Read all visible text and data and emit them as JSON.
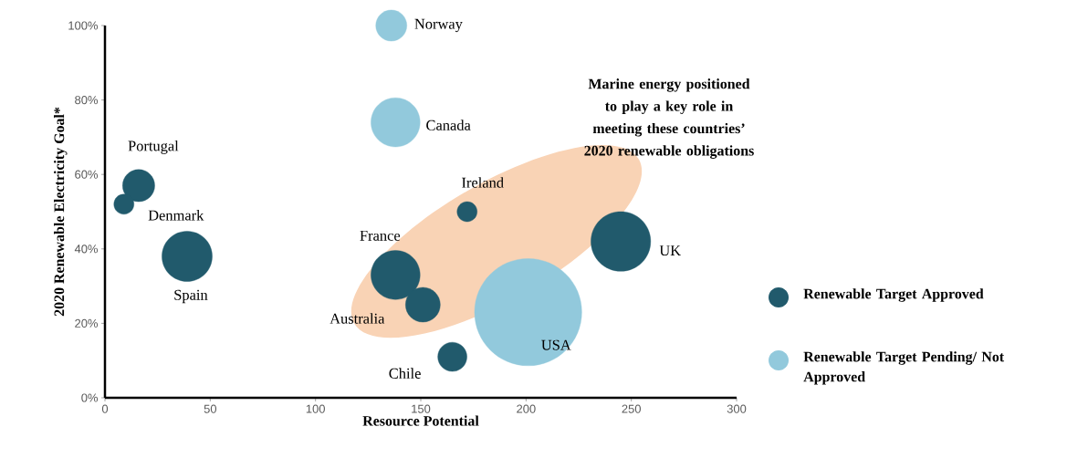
{
  "chart_data": {
    "type": "bubble",
    "xlabel": "Resource Potential",
    "ylabel": "2020 Renewable Electricity Goal*",
    "xlim": [
      0,
      300
    ],
    "ylim": [
      0,
      100
    ],
    "xticks": [
      0,
      50,
      100,
      150,
      200,
      250,
      300
    ],
    "yticks": [
      {
        "value": 0,
        "label": "0%"
      },
      {
        "value": 20,
        "label": "20%"
      },
      {
        "value": 40,
        "label": "40%"
      },
      {
        "value": 60,
        "label": "60%"
      },
      {
        "value": 80,
        "label": "80%"
      },
      {
        "value": 100,
        "label": "100%"
      }
    ],
    "legend": "right",
    "series": [
      {
        "name": "Renewable Target Approved",
        "color": "#215a6c",
        "x": [
          16,
          9,
          39,
          138,
          151,
          172,
          245,
          165
        ],
        "values": [
          57,
          52,
          38,
          33,
          25,
          50,
          42,
          11
        ],
        "sizes": [
          0.09,
          0.035,
          0.22,
          0.21,
          0.105,
          0.035,
          0.31,
          0.074
        ]
      },
      {
        "name": "Renewable Target Pending/ Not Approved",
        "color": "#92c9dc",
        "x": [
          136,
          138,
          201
        ],
        "values": [
          100,
          74,
          23
        ],
        "sizes": [
          0.084,
          0.21,
          1
        ]
      }
    ],
    "annotations": [
      "Marine energy positioned to play a key role in meeting these countries’ 2020 renewable obligations",
      {
        "text": "Portugal",
        "x": 16,
        "y": 57
      },
      {
        "text": "Denmark",
        "x": 9,
        "y": 52
      },
      {
        "text": "Spain",
        "x": 39,
        "y": 38
      },
      {
        "text": "France",
        "x": 138,
        "y": 33
      },
      {
        "text": "Australia",
        "x": 151,
        "y": 25
      },
      {
        "text": "Ireland",
        "x": 172,
        "y": 50
      },
      {
        "text": "UK",
        "x": 245,
        "y": 42
      },
      {
        "text": "Chile",
        "x": 165,
        "y": 11
      },
      {
        "text": "Norway",
        "x": 136,
        "y": 100
      },
      {
        "text": "Canada",
        "x": 138,
        "y": 74
      },
      {
        "text": "USA",
        "x": 201,
        "y": 23
      }
    ]
  }
}
